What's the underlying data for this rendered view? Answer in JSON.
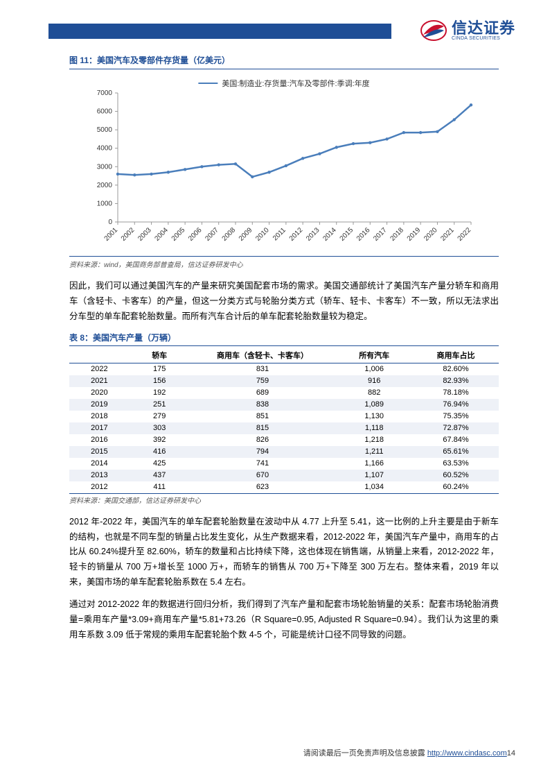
{
  "header": {
    "logo_text": "信达证券",
    "logo_sub": "CINDA SECURITIES"
  },
  "figure": {
    "label": "图 11：美国汽车及零部件存货量（亿美元）",
    "legend": "美国:制造业:存货量:汽车及零部件:季调:年度",
    "type": "line",
    "line_color": "#4a7ebb",
    "background_color": "#ffffff",
    "axis_color": "#999999",
    "label_fontsize": 10,
    "ylim": [
      0,
      7000
    ],
    "ytick_step": 1000,
    "x_categories": [
      "2001",
      "2002",
      "2003",
      "2004",
      "2005",
      "2006",
      "2007",
      "2008",
      "2009",
      "2010",
      "2011",
      "2012",
      "2013",
      "2014",
      "2015",
      "2016",
      "2017",
      "2018",
      "2019",
      "2020",
      "2021",
      "2022"
    ],
    "values": [
      2600,
      2550,
      2600,
      2700,
      2850,
      3000,
      3100,
      3150,
      2450,
      2700,
      3050,
      3450,
      3700,
      4050,
      4250,
      4300,
      4500,
      4850,
      4850,
      4900,
      5550,
      6350
    ],
    "source": "资料来源：wind，美国商务部普查局，信达证券研发中心"
  },
  "para1": "因此，我们可以通过美国汽车的产量来研究美国配套市场的需求。美国交通部统计了美国汽车产量分轿车和商用车（含轻卡、卡客车）的产量，但这一分类方式与轮胎分类方式（轿车、轻卡、卡客车）不一致，所以无法求出分车型的单车配套轮胎数量。而所有汽车合计后的单车配套轮胎数量较为稳定。",
  "table": {
    "label": "表 8：美国汽车产量（万辆）",
    "columns": [
      "",
      "轿车",
      "商用车（含轻卡、卡客车）",
      "所有汽车",
      "商用车占比"
    ],
    "col_widths": [
      "14%",
      "14%",
      "34%",
      "18%",
      "20%"
    ],
    "rows": [
      [
        "2022",
        "175",
        "831",
        "1,006",
        "82.60%"
      ],
      [
        "2021",
        "156",
        "759",
        "916",
        "82.93%"
      ],
      [
        "2020",
        "192",
        "689",
        "882",
        "78.18%"
      ],
      [
        "2019",
        "251",
        "838",
        "1,089",
        "76.94%"
      ],
      [
        "2018",
        "279",
        "851",
        "1,130",
        "75.35%"
      ],
      [
        "2017",
        "303",
        "815",
        "1,118",
        "72.87%"
      ],
      [
        "2016",
        "392",
        "826",
        "1,218",
        "67.84%"
      ],
      [
        "2015",
        "416",
        "794",
        "1,211",
        "65.61%"
      ],
      [
        "2014",
        "425",
        "741",
        "1,166",
        "63.53%"
      ],
      [
        "2013",
        "437",
        "670",
        "1,107",
        "60.52%"
      ],
      [
        "2012",
        "411",
        "623",
        "1,034",
        "60.24%"
      ]
    ],
    "alt_row_color": "#eef1f7",
    "source": "资料来源：美国交通部，信达证券研发中心"
  },
  "para2": "2012 年-2022 年，美国汽车的单车配套轮胎数量在波动中从 4.77 上升至 5.41，这一比例的上升主要是由于新车的结构，也就是不同车型的销量占比发生变化，从生产数据来看，2012-2022 年，美国汽车产量中，商用车的占比从 60.24%提升至 82.60%，轿车的数量和占比持续下降，这也体现在销售端，从销量上来看，2012-2022 年，轻卡的销量从 700 万+增长至 1000 万+，而轿车的销售从 700 万+下降至 300 万左右。整体来看，2019 年以来，美国市场的单车配套轮胎系数在 5.4 左右。",
  "para3": "通过对 2012-2022 年的数据进行回归分析，我们得到了汽车产量和配套市场轮胎销量的关系：配套市场轮胎消费量=乘用车产量*3.09+商用车产量*5.81+73.26（R Square=0.95, Adjusted R Square=0.94）。我们认为这里的乘用车系数 3.09 低于常规的乘用车配套轮胎个数 4-5 个，可能是统计口径不同导致的问题。",
  "footer": {
    "disclaimer": "请阅读最后一页免责声明及信息披露",
    "link_text": "http://www.cindasc.com",
    "page": "14"
  }
}
